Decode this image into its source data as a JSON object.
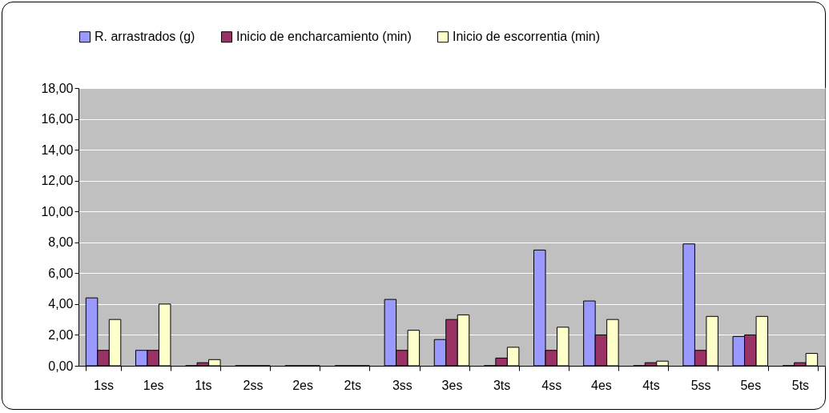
{
  "chart_data": {
    "type": "bar",
    "categories": [
      "1ss",
      "1es",
      "1ts",
      "2ss",
      "2es",
      "2ts",
      "3ss",
      "3es",
      "3ts",
      "4ss",
      "4es",
      "4ts",
      "5ss",
      "5es",
      "5ts"
    ],
    "series": [
      {
        "name": "R. arrastrados (g)",
        "color": "#9999ff",
        "values": [
          4.4,
          1.0,
          0,
          0,
          0,
          0,
          4.3,
          1.7,
          0,
          7.5,
          4.2,
          0,
          7.9,
          1.9,
          0
        ]
      },
      {
        "name": "Inicio de encharcamiento (min)",
        "color": "#993366",
        "values": [
          1.0,
          1.0,
          0.2,
          0,
          0,
          0,
          1.0,
          3.0,
          0.5,
          1.0,
          2.0,
          0.2,
          1.0,
          2.0,
          0.2
        ]
      },
      {
        "name": "Inicio de escorrentia (min)",
        "color": "#ffffcc",
        "values": [
          3.0,
          4.0,
          0.4,
          0,
          0,
          0,
          2.3,
          3.3,
          1.2,
          2.5,
          3.0,
          0.3,
          3.2,
          3.2,
          0.8
        ]
      }
    ],
    "ylim": [
      0,
      18
    ],
    "yticks": [
      {
        "value": 0,
        "label": "0,00"
      },
      {
        "value": 2,
        "label": "2,00"
      },
      {
        "value": 4,
        "label": "4,00"
      },
      {
        "value": 6,
        "label": "6,00"
      },
      {
        "value": 8,
        "label": "8,00"
      },
      {
        "value": 10,
        "label": "10,00"
      },
      {
        "value": 12,
        "label": "12,00"
      },
      {
        "value": 14,
        "label": "14,00"
      },
      {
        "value": 16,
        "label": "16,00"
      },
      {
        "value": 18,
        "label": "18,00"
      }
    ],
    "grid": "y",
    "legend": "top"
  }
}
